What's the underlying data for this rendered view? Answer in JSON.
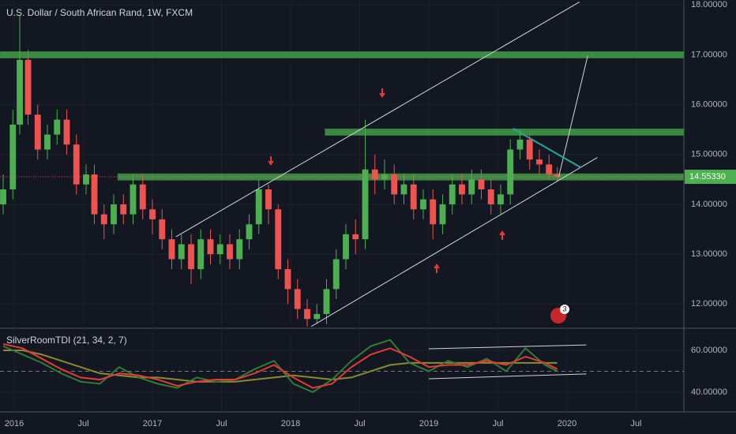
{
  "chart_data": [
    {
      "type": "candlestick",
      "title": "U.S. Dollar / South African Rand, 1W, FXCM",
      "up_color": "#4caf50",
      "down_color": "#ef5350",
      "x": [
        2015.92,
        2015.99,
        2016.04,
        2016.1,
        2016.17,
        2016.24,
        2016.31,
        2016.38,
        2016.45,
        2016.52,
        2016.58,
        2016.65,
        2016.72,
        2016.79,
        2016.86,
        2016.93,
        2017.0,
        2017.07,
        2017.14,
        2017.21,
        2017.28,
        2017.35,
        2017.42,
        2017.49,
        2017.56,
        2017.63,
        2017.7,
        2017.77,
        2017.84,
        2017.91,
        2017.98,
        2018.05,
        2018.12,
        2018.19,
        2018.26,
        2018.33,
        2018.4,
        2018.47,
        2018.54,
        2018.61,
        2018.68,
        2018.75,
        2018.82,
        2018.89,
        2018.96,
        2019.03,
        2019.1,
        2019.17,
        2019.24,
        2019.31,
        2019.38,
        2019.45,
        2019.52,
        2019.59,
        2019.66,
        2019.73,
        2019.8,
        2019.87,
        2019.93
      ],
      "open": [
        14.0,
        14.3,
        15.6,
        16.9,
        15.8,
        15.1,
        15.4,
        15.7,
        15.2,
        14.4,
        14.6,
        13.8,
        13.6,
        14.0,
        13.8,
        14.4,
        13.9,
        13.7,
        13.3,
        12.9,
        13.2,
        12.7,
        13.3,
        13.0,
        13.2,
        12.9,
        13.3,
        13.6,
        14.3,
        13.9,
        12.7,
        12.3,
        11.9,
        11.7,
        11.8,
        12.3,
        12.9,
        13.4,
        13.3,
        14.7,
        14.5,
        14.6,
        14.2,
        14.4,
        13.9,
        14.1,
        13.6,
        14.0,
        14.4,
        14.2,
        14.5,
        14.3,
        14.0,
        14.2,
        15.1,
        15.3,
        14.9,
        14.8,
        14.6
      ],
      "high": [
        14.6,
        15.9,
        17.8,
        17.1,
        16.0,
        15.6,
        15.9,
        15.9,
        15.4,
        14.8,
        14.8,
        14.0,
        14.2,
        14.2,
        14.6,
        14.6,
        14.1,
        13.9,
        13.5,
        13.4,
        13.4,
        13.5,
        13.5,
        13.4,
        13.4,
        13.5,
        13.8,
        14.5,
        14.4,
        14.0,
        12.9,
        12.5,
        12.1,
        12.0,
        12.5,
        13.1,
        13.6,
        13.7,
        15.7,
        15.0,
        14.9,
        14.8,
        14.6,
        14.6,
        14.3,
        14.3,
        14.2,
        14.6,
        14.6,
        14.7,
        14.7,
        14.5,
        14.4,
        15.3,
        15.5,
        15.4,
        15.1,
        15.0,
        14.75
      ],
      "low": [
        13.8,
        14.1,
        15.4,
        15.6,
        14.9,
        14.9,
        15.2,
        15.0,
        14.2,
        14.2,
        13.6,
        13.3,
        13.4,
        13.6,
        13.6,
        13.7,
        13.4,
        13.1,
        12.7,
        12.7,
        12.4,
        12.5,
        12.8,
        12.8,
        12.7,
        12.7,
        13.1,
        13.4,
        13.6,
        12.5,
        12.0,
        11.7,
        11.55,
        11.6,
        11.6,
        12.1,
        12.7,
        13.0,
        13.1,
        14.2,
        14.3,
        14.0,
        14.0,
        13.7,
        13.7,
        13.3,
        13.4,
        13.8,
        14.0,
        14.0,
        14.1,
        13.8,
        13.8,
        14.0,
        14.9,
        14.7,
        14.6,
        14.5,
        14.45
      ],
      "close": [
        14.3,
        15.6,
        16.9,
        15.8,
        15.1,
        15.4,
        15.7,
        15.2,
        14.4,
        14.6,
        13.8,
        13.6,
        14.0,
        13.8,
        14.4,
        13.9,
        13.7,
        13.3,
        12.9,
        13.2,
        12.7,
        13.3,
        13.0,
        13.2,
        12.9,
        13.3,
        13.6,
        14.3,
        13.9,
        12.7,
        12.3,
        11.9,
        11.7,
        11.8,
        12.3,
        12.9,
        13.4,
        13.3,
        14.7,
        14.5,
        14.6,
        14.2,
        14.4,
        13.9,
        14.1,
        13.6,
        14.0,
        14.4,
        14.2,
        14.5,
        14.3,
        14.0,
        14.2,
        15.1,
        15.3,
        14.9,
        14.8,
        14.6,
        14.55
      ],
      "last_price": {
        "value": 14.5533,
        "label": "14.55330"
      },
      "xlim": [
        2015.897,
        2020.846
      ],
      "ylim": [
        11.53,
        18.1
      ],
      "xticks": [
        {
          "value": 2016,
          "label": "2016"
        },
        {
          "value": 2016.5,
          "label": "Jul"
        },
        {
          "value": 2017,
          "label": "2017"
        },
        {
          "value": 2017.5,
          "label": "Jul"
        },
        {
          "value": 2018,
          "label": "2018"
        },
        {
          "value": 2018.5,
          "label": "Jul"
        },
        {
          "value": 2019,
          "label": "2019"
        },
        {
          "value": 2019.5,
          "label": "Jul"
        },
        {
          "value": 2020,
          "label": "2020"
        },
        {
          "value": 2020.5,
          "label": "Jul"
        }
      ],
      "yticks": [
        {
          "value": 12,
          "label": "12.00000"
        },
        {
          "value": 13,
          "label": "13.00000"
        },
        {
          "value": 14,
          "label": "14.00000"
        },
        {
          "value": 15,
          "label": "15.00000"
        },
        {
          "value": 16,
          "label": "16.00000"
        },
        {
          "value": 17,
          "label": "17.00000"
        },
        {
          "value": 18,
          "label": "18.00000"
        }
      ],
      "grid": true,
      "zones": [
        {
          "from": 2015.897,
          "level": 17.0
        },
        {
          "from": 2018.25,
          "level": 15.45
        },
        {
          "from": 2016.75,
          "level": 14.55
        }
      ],
      "lines": [
        {
          "color": "#d1d4dc",
          "points": [
            [
              2017.17,
              13.35
            ],
            [
              2020.09,
              18.06
            ]
          ]
        },
        {
          "color": "#d1d4dc",
          "points": [
            [
              2018.15,
              11.55
            ],
            [
              2020.22,
              14.94
            ]
          ]
        },
        {
          "color": "#d1d4dc",
          "points": [
            [
              2019.94,
              14.55
            ],
            [
              2020.15,
              16.98
            ]
          ]
        },
        {
          "color": "#26a69a",
          "points": [
            [
              2019.61,
              15.52
            ],
            [
              2020.1,
              14.74
            ]
          ]
        }
      ],
      "badge": "3"
    },
    {
      "type": "line",
      "title": "SilverRoomTDI (21, 34, 2, 7)",
      "x": [
        2015.92,
        2016.06,
        2016.2,
        2016.34,
        2016.48,
        2016.62,
        2016.76,
        2016.9,
        2017.04,
        2017.18,
        2017.32,
        2017.46,
        2017.6,
        2017.74,
        2017.88,
        2018.02,
        2018.16,
        2018.3,
        2018.44,
        2018.58,
        2018.72,
        2018.86,
        2019.0,
        2019.14,
        2019.28,
        2019.42,
        2019.56,
        2019.7,
        2019.84,
        2019.93
      ],
      "series": [
        {
          "color": "#8a8a2e",
          "values": [
            60,
            60,
            58,
            55,
            52,
            49,
            48,
            47,
            47,
            46,
            45,
            45,
            45,
            46,
            47,
            48,
            47,
            46,
            47,
            50,
            53,
            54,
            54,
            54,
            54,
            54,
            54,
            54,
            54,
            54
          ]
        },
        {
          "color": "#2e7d32",
          "values": [
            62,
            58,
            54,
            49,
            45,
            44,
            52,
            47,
            44,
            42,
            47,
            45,
            46,
            51,
            55,
            44,
            40,
            46,
            55,
            62,
            65,
            54,
            50,
            55,
            52,
            56,
            50,
            61,
            53,
            50
          ]
        },
        {
          "color": "#e53935",
          "values": [
            63,
            61,
            56,
            51,
            47,
            46,
            49,
            48,
            46,
            43,
            45,
            46,
            46,
            49,
            53,
            47,
            42,
            44,
            52,
            58,
            61,
            57,
            52,
            53,
            53,
            55,
            53,
            57,
            54,
            51
          ]
        }
      ],
      "midline": 50,
      "xlim": [
        2015.897,
        2020.846
      ],
      "ylim": [
        31.3,
        69.8
      ],
      "yticks": [
        {
          "value": 40,
          "label": "40.00000"
        },
        {
          "value": 60,
          "label": "60.00000"
        }
      ],
      "lines": [
        {
          "color": "#d1d4dc",
          "points": [
            [
              2019.0,
              60.75
            ],
            [
              2020.14,
              62.6
            ]
          ]
        },
        {
          "color": "#d1d4dc",
          "points": [
            [
              2019.0,
              46.4
            ],
            [
              2020.14,
              48.7
            ]
          ]
        }
      ]
    }
  ]
}
